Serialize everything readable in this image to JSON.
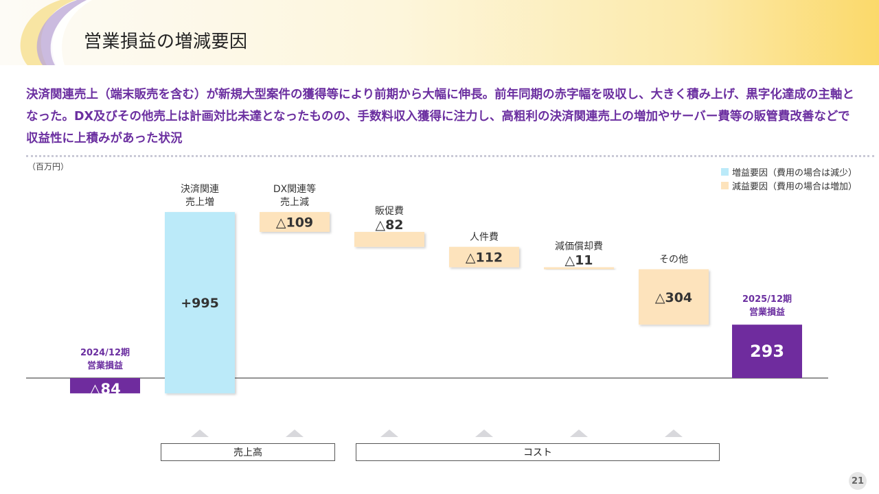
{
  "slide": {
    "title": "営業損益の増減要因",
    "summary": "決済関連売上（端末販売を含む）が新規大型案件の獲得等により前期から大幅に伸長。前年同期の赤字幅を吸収し、大きく積み上げ、黒字化達成の主軸となった。DX及びその他売上は計画対比未達となったものの、手数料収入獲得に注力し、高粗利の決済関連売上の増加やサーバー費等の販管費改善などで収益性に上積みがあった状況",
    "page_number": "21"
  },
  "colors": {
    "increase": "#bbeaf9",
    "decrease": "#fde3bc",
    "total": "#6f2c9e",
    "accent_text": "#6b2fa0"
  },
  "legend": {
    "increase": "増益要因（費用の場合は減少）",
    "decrease": "減益要因（費用の場合は増加）"
  },
  "groups": {
    "sales": "売上高",
    "cost": "コスト"
  },
  "chart_data": {
    "type": "waterfall",
    "unit": "（百万円）",
    "steps": [
      {
        "label": "2024/12期\n営業損益",
        "kind": "total",
        "value": -84,
        "display": "△84"
      },
      {
        "label": "決済関連\n売上増",
        "kind": "increase",
        "value": 995,
        "display": "+995"
      },
      {
        "label": "DX関連等\n売上減",
        "kind": "decrease",
        "value": -109,
        "display": "△109"
      },
      {
        "label": "販促費",
        "kind": "decrease",
        "value": -82,
        "display": "△82"
      },
      {
        "label": "人件費",
        "kind": "decrease",
        "value": -112,
        "display": "△112"
      },
      {
        "label": "減価償却費",
        "kind": "decrease",
        "value": -11,
        "display": "△11"
      },
      {
        "label": "その他",
        "kind": "decrease",
        "value": -304,
        "display": "△304"
      },
      {
        "label": "2025/12期\n営業損益",
        "kind": "total",
        "value": 293,
        "display": "293"
      }
    ]
  }
}
